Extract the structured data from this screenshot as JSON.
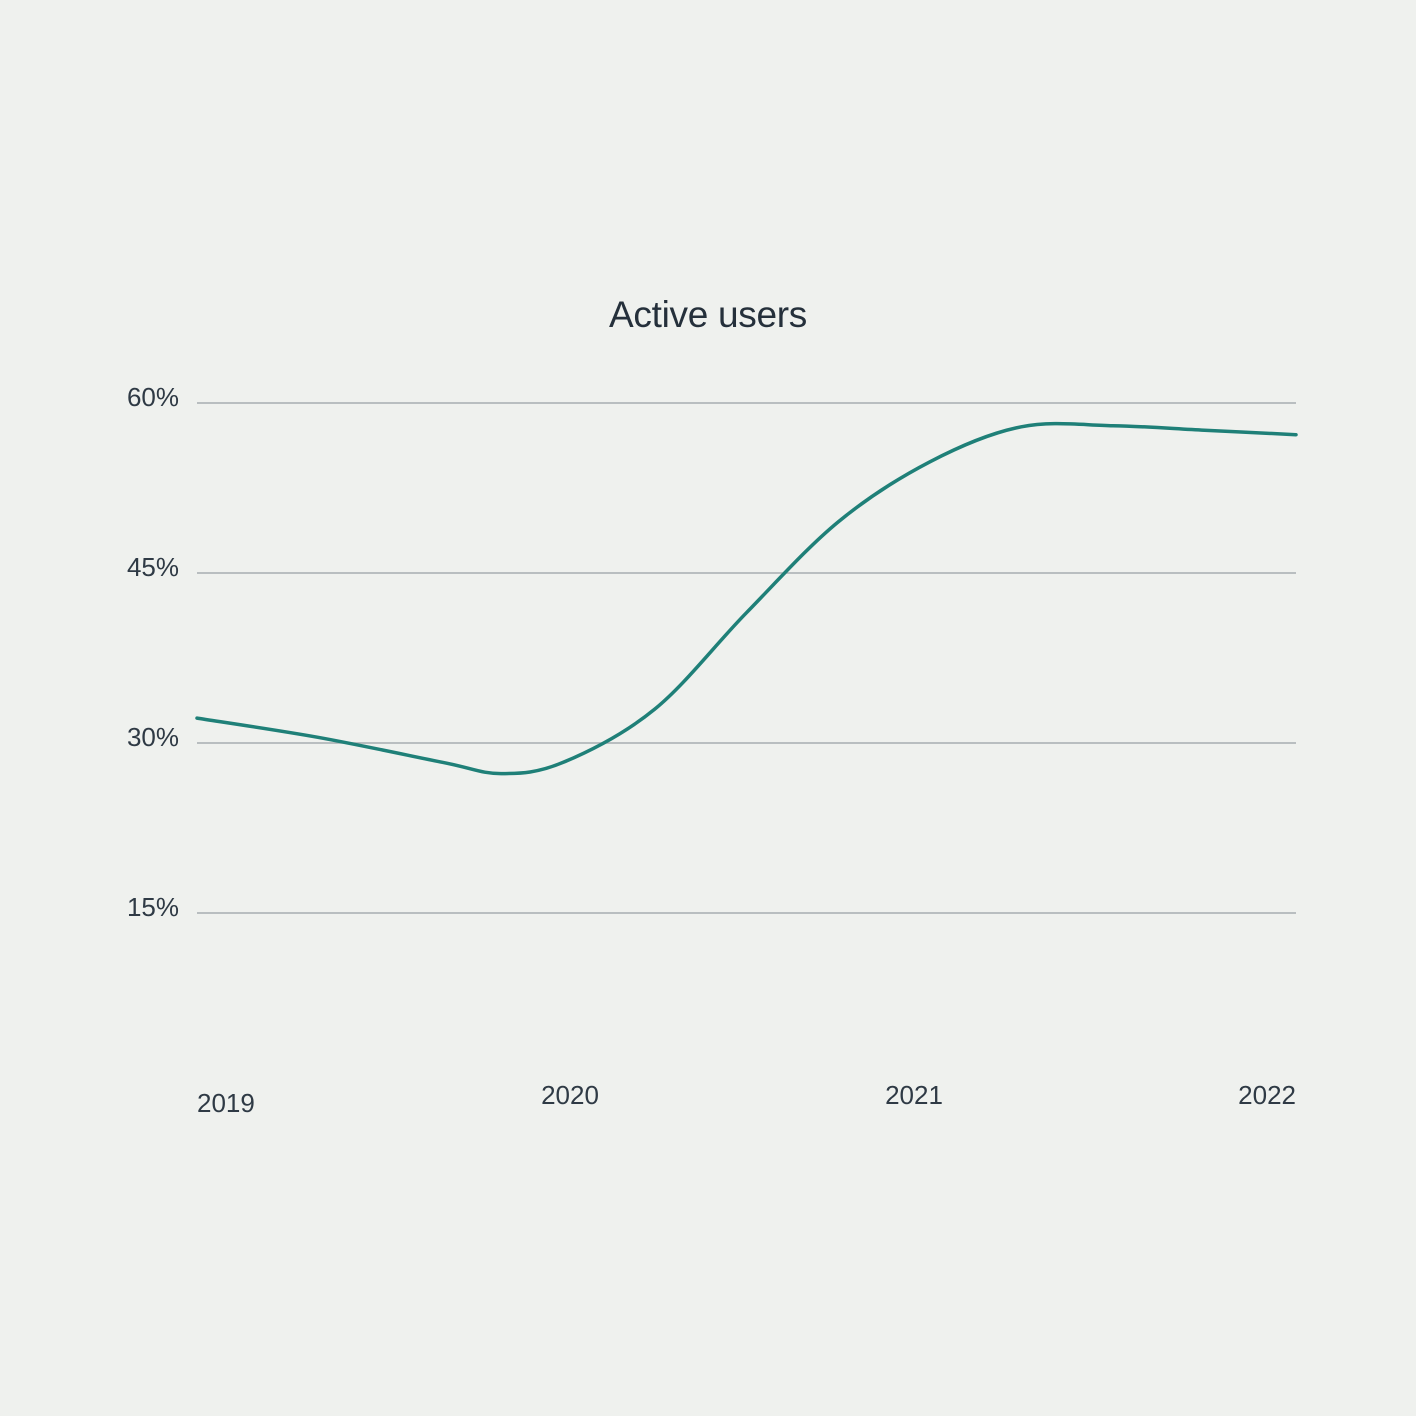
{
  "chart_data": {
    "type": "line",
    "title": "Active users",
    "xlabel": "",
    "ylabel": "",
    "x": [
      2019,
      2019.33,
      2019.67,
      2019.83,
      2020.0,
      2020.25,
      2020.5,
      2020.75,
      2021.0,
      2021.25,
      2021.5,
      2021.75,
      2022.0
    ],
    "series": [
      {
        "values": [
          32.2,
          30.5,
          28.3,
          27.3,
          28.3,
          33.0,
          41.5,
          49.5,
          54.8,
          57.9,
          58.0,
          57.6,
          57.2
        ],
        "color": "#1f8078"
      }
    ],
    "x_ticks": [
      "2019",
      "2020",
      "2021",
      "2022"
    ],
    "y_ticks": [
      "15%",
      "30%",
      "45%",
      "60%"
    ],
    "y_tick_values": [
      15,
      30,
      45,
      60
    ],
    "ylim": [
      15,
      60
    ],
    "xlim": [
      2019,
      2022
    ],
    "grid": "horizontal",
    "legend": "none"
  }
}
